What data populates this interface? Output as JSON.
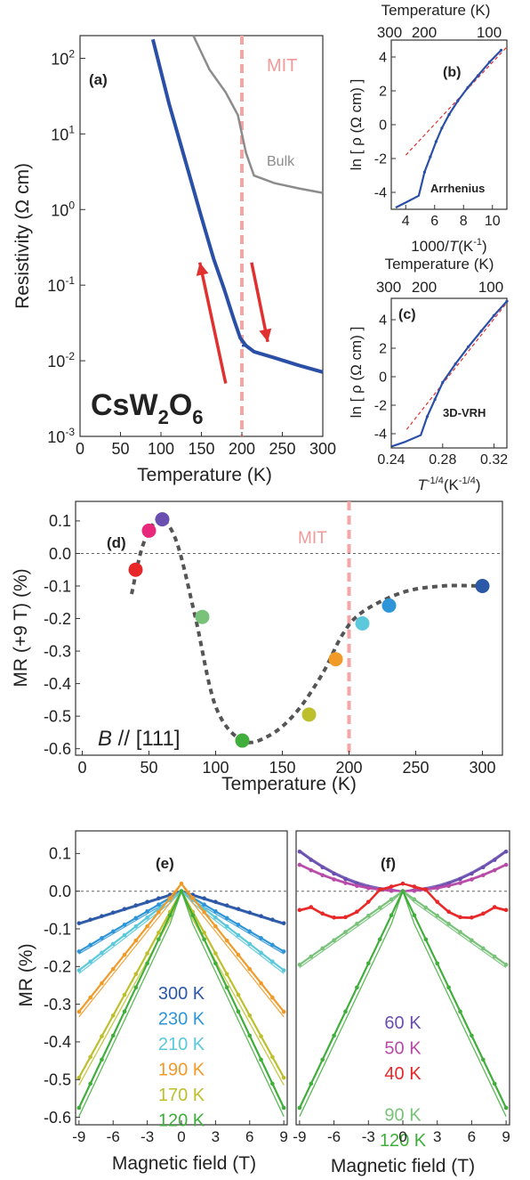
{
  "chart_data": [
    {
      "panel": "(a)",
      "type": "line",
      "xlabel": "Temperature (K)",
      "ylabel": "Resistivity (Ω cm)",
      "xlim": [
        0,
        300
      ],
      "ylim_log10": [
        -3,
        2.3
      ],
      "yscale": "log",
      "xticks": [
        0,
        50,
        100,
        150,
        200,
        250,
        300
      ],
      "yticks": [
        "10-3",
        "10-2",
        "10-1",
        "100",
        "101",
        "102"
      ],
      "annotations": {
        "formula": "CsW2O6",
        "mit": "MIT",
        "bulk": "Bulk"
      },
      "mit_x": 200,
      "series": [
        {
          "color": "#2a4fa6",
          "x": [
            90,
            110,
            130,
            150,
            165,
            178,
            190,
            198,
            205,
            215,
            240,
            270,
            300
          ],
          "log10y": [
            2.25,
            1.4,
            0.65,
            -0.1,
            -0.65,
            -1.05,
            -1.45,
            -1.7,
            -1.8,
            -1.88,
            -1.96,
            -2.06,
            -2.15
          ]
        },
        {
          "color": "#2a4fa6",
          "x": [
            200,
            205,
            215,
            240,
            270,
            300
          ],
          "log10y": [
            -1.8,
            -1.8,
            -1.88,
            -1.96,
            -2.06,
            -2.15
          ]
        },
        {
          "name": "Bulk",
          "color": "#8c8c8c",
          "x": [
            140,
            160,
            180,
            195,
            205,
            215,
            240,
            270,
            300
          ],
          "log10y": [
            2.3,
            1.85,
            1.55,
            1.25,
            0.75,
            0.45,
            0.35,
            0.28,
            0.22
          ]
        }
      ],
      "arrows": [
        {
          "from": [
            180,
            -2.3
          ],
          "to": [
            148,
            -0.7
          ],
          "color": "#e03030"
        },
        {
          "from": [
            212,
            -0.7
          ],
          "to": [
            232,
            -1.75
          ],
          "color": "#e03030"
        }
      ]
    },
    {
      "panel": "(b)",
      "type": "line",
      "title_top": "Temperature (K)",
      "top_ticks": [
        "300",
        "200",
        "100"
      ],
      "xlabel_html": "1000/T(K-1)",
      "ylabel": "ln [ ρ (Ω cm) ]",
      "xlim": [
        3,
        11
      ],
      "ylim": [
        -5,
        5
      ],
      "xticks": [
        4,
        6,
        8,
        10
      ],
      "yticks": [
        -4,
        -2,
        0,
        2,
        4
      ],
      "annotation": "Arrhenius",
      "data": {
        "x": [
          3.3,
          4.0,
          4.9,
          5.3,
          5.7,
          6.1,
          6.5,
          7.0,
          7.6,
          8.3,
          9.0,
          9.8,
          10.6
        ],
        "y": [
          -4.9,
          -4.6,
          -4.2,
          -2.8,
          -1.9,
          -1.0,
          -0.2,
          0.6,
          1.4,
          2.2,
          2.9,
          3.7,
          4.4
        ]
      },
      "fit": {
        "x": [
          4.0,
          11.0
        ],
        "y": [
          -1.8,
          4.6
        ]
      }
    },
    {
      "panel": "(c)",
      "type": "line",
      "title_top": "Temperature (K)",
      "top_ticks": [
        "300",
        "200",
        "100"
      ],
      "xlabel_html": "T-1/4(K-1/4)",
      "ylabel": "ln [ ρ (Ω cm) ]",
      "xlim": [
        0.24,
        0.33
      ],
      "ylim": [
        -5,
        5.5
      ],
      "xticks": [
        0.24,
        0.28,
        0.32
      ],
      "yticks": [
        -4,
        -2,
        0,
        2,
        4
      ],
      "annotation": "3D-VRH",
      "data": {
        "x": [
          0.24,
          0.25,
          0.263,
          0.268,
          0.274,
          0.28,
          0.29,
          0.3,
          0.31,
          0.32,
          0.33
        ],
        "y": [
          -4.9,
          -4.6,
          -4.1,
          -2.8,
          -1.6,
          -0.4,
          0.9,
          2.1,
          3.2,
          4.3,
          5.3
        ]
      },
      "fit": {
        "x": [
          0.252,
          0.33
        ],
        "y": [
          -3.7,
          5.2
        ]
      }
    },
    {
      "panel": "(d)",
      "type": "scatter",
      "xlabel": "Temperature (K)",
      "ylabel": "MR (+9 T) (%)",
      "xlim": [
        -5,
        315
      ],
      "ylim": [
        -0.62,
        0.16
      ],
      "xticks": [
        0,
        50,
        100,
        150,
        200,
        250,
        300
      ],
      "yticks": [
        0.1,
        0.0,
        -0.1,
        -0.2,
        -0.3,
        -0.4,
        -0.5,
        -0.6
      ],
      "ytick_labels": [
        "0.1",
        "0.0",
        "-0.1",
        "-0.2",
        "-0.3",
        "-0.4",
        "-0.5",
        "-0.6"
      ],
      "annotations": {
        "mit": "MIT",
        "field_dir": "B // [111]"
      },
      "mit_x": 200,
      "points": [
        {
          "x": 40,
          "y": -0.05,
          "color": "#e82828"
        },
        {
          "x": 50,
          "y": 0.07,
          "color": "#e8287a"
        },
        {
          "x": 60,
          "y": 0.105,
          "color": "#6a4fb0"
        },
        {
          "x": 90,
          "y": -0.195,
          "color": "#78c27a"
        },
        {
          "x": 120,
          "y": -0.575,
          "color": "#3fae3a"
        },
        {
          "x": 170,
          "y": -0.495,
          "color": "#bdbf2c"
        },
        {
          "x": 190,
          "y": -0.325,
          "color": "#f09a28"
        },
        {
          "x": 210,
          "y": -0.215,
          "color": "#5cc8dc"
        },
        {
          "x": 230,
          "y": -0.16,
          "color": "#2d95d8"
        },
        {
          "x": 300,
          "y": -0.1,
          "color": "#2c58a8"
        }
      ],
      "guide": {
        "x": [
          37,
          45,
          55,
          62,
          72,
          85,
          100,
          120,
          140,
          160,
          180,
          195,
          210,
          240,
          270,
          300
        ],
        "y": [
          -0.125,
          0.02,
          0.1,
          0.1,
          0.02,
          -0.2,
          -0.47,
          -0.575,
          -0.56,
          -0.49,
          -0.37,
          -0.25,
          -0.18,
          -0.12,
          -0.1,
          -0.1
        ]
      }
    },
    {
      "panel": "(e)",
      "type": "line",
      "xlabel": "Magnetic field (T)",
      "ylabel": "MR (%)",
      "xlim": [
        -9.3,
        9.3
      ],
      "ylim": [
        -0.62,
        0.16
      ],
      "xticks": [
        -9,
        -6,
        -3,
        0,
        3,
        6,
        9
      ],
      "yticks": [
        0.1,
        0.0,
        -0.1,
        -0.2,
        -0.3,
        -0.4,
        -0.5,
        -0.6
      ],
      "ytick_labels": [
        "0.1",
        "0.0",
        "-0.1",
        "-0.2",
        "-0.3",
        "-0.4",
        "-0.5",
        "-0.6"
      ],
      "series": [
        {
          "name": "300 K",
          "color": "#2c58a8",
          "end": -0.085,
          "peak": 0.0,
          "shape": 1.0
        },
        {
          "name": "230 K",
          "color": "#2d95d8",
          "end": -0.16,
          "peak": 0.0,
          "shape": 1.0
        },
        {
          "name": "210 K",
          "color": "#5cc8dc",
          "end": -0.21,
          "peak": 0.0,
          "shape": 1.0
        },
        {
          "name": "190 K",
          "color": "#f09a28",
          "end": -0.32,
          "peak": 0.02,
          "shape": 1.0
        },
        {
          "name": "170 K",
          "color": "#bdbf2c",
          "end": -0.495,
          "peak": 0.0,
          "shape": 1.0
        },
        {
          "name": "120 K",
          "color": "#3fae3a",
          "end": -0.575,
          "peak": 0.0,
          "shape": 1.0
        }
      ]
    },
    {
      "panel": "(f)",
      "type": "line",
      "xlabel": "Magnetic field (T)",
      "xlim": [
        -9.3,
        9.3
      ],
      "ylim": [
        -0.62,
        0.16
      ],
      "xticks": [
        -9,
        -6,
        -3,
        0,
        3,
        6,
        9
      ],
      "series": [
        {
          "name": "60 K",
          "color": "#6a4fb0",
          "end": 0.105,
          "peak": 0.0,
          "shape": 2.0
        },
        {
          "name": "50 K",
          "color": "#b84aa8",
          "end": 0.07,
          "peak": 0.0,
          "shape": 2.0
        },
        {
          "name": "40 K",
          "color": "#e82828",
          "end": -0.05,
          "peak": 0.02,
          "shape": 1.0
        },
        {
          "name": "90 K",
          "color": "#78c27a",
          "end": -0.195,
          "peak": 0.0,
          "shape": 1.0
        },
        {
          "name": "120 K",
          "color": "#3fae3a",
          "end": -0.575,
          "peak": 0.0,
          "shape": 1.0
        }
      ]
    }
  ]
}
